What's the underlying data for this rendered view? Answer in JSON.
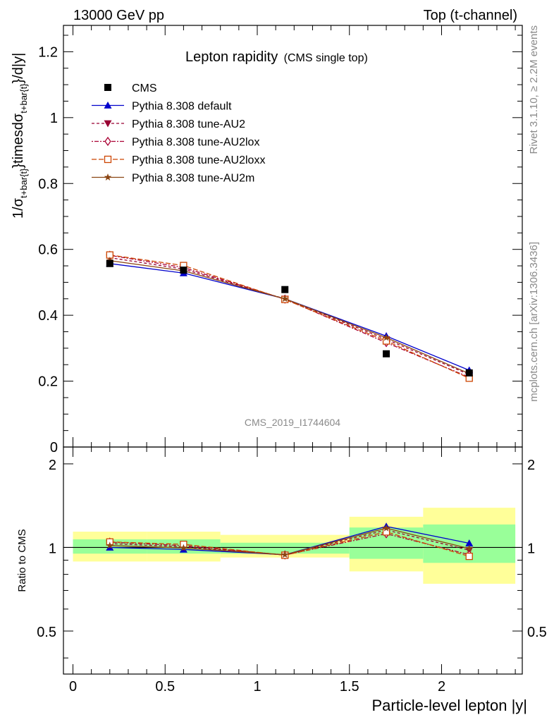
{
  "header": {
    "left": "13000 GeV pp",
    "right": "Top (t-channel)"
  },
  "side_labels": {
    "rivet": "Rivet 3.1.10, ≥ 2.2M events",
    "mcplots": "mcplots.cern.ch [arXiv:1306.3436]"
  },
  "chart_data": {
    "type": "line",
    "title": "Lepton rapidity",
    "subtitle": "(CMS single top)",
    "watermark": "CMS_2019_I1744604",
    "xlabel": "Particle-level lepton |y|",
    "ylabel": "1/σ_{t+bar{t}}timesdσ_{t+bar{t}}/d|y|",
    "ylabel_parts": {
      "base": "1/σ",
      "sub1": "t+bar{t}",
      "mid": "}timesdσ",
      "sub2": "t+bar{t}",
      "end": "}/d|y|"
    },
    "ratio_ylabel": "Ratio to CMS",
    "xlim": [
      -0.05,
      2.45
    ],
    "ylim": [
      0,
      1.28
    ],
    "ratio_ylim": [
      0.35,
      2.3
    ],
    "x_ticks": [
      0,
      0.5,
      1,
      1.5,
      2
    ],
    "x_tick_labels": [
      "0",
      "0.5",
      "1",
      "1.5",
      "2"
    ],
    "y_ticks": [
      0,
      0.2,
      0.4,
      0.6,
      0.8,
      1,
      1.2
    ],
    "y_tick_labels": [
      "0",
      "0.2",
      "0.4",
      "0.6",
      "0.8",
      "1",
      "1.2"
    ],
    "ratio_y_ticks": [
      0.5,
      1,
      2
    ],
    "ratio_y_tick_labels": [
      "0.5",
      "1",
      "2"
    ],
    "legend_position": "top-left",
    "x": [
      0.2,
      0.6,
      1.15,
      1.7,
      2.15
    ],
    "bins": [
      [
        0,
        0.4
      ],
      [
        0.4,
        0.8
      ],
      [
        0.8,
        1.5
      ],
      [
        1.5,
        1.9
      ],
      [
        1.9,
        2.4
      ]
    ],
    "cms": {
      "name": "CMS",
      "values": [
        0.557,
        0.537,
        0.478,
        0.283,
        0.225
      ],
      "band_inner": [
        [
          0.95,
          1.07
        ],
        [
          0.95,
          1.07
        ],
        [
          0.95,
          1.04
        ],
        [
          0.91,
          1.18
        ],
        [
          0.88,
          1.21
        ]
      ],
      "band_outer": [
        [
          0.89,
          1.14
        ],
        [
          0.89,
          1.14
        ],
        [
          0.92,
          1.11
        ],
        [
          0.82,
          1.29
        ],
        [
          0.74,
          1.39
        ]
      ]
    },
    "series": [
      {
        "name": "Pythia 8.308 default",
        "color": "#0000cc",
        "dash": "",
        "marker": "triangle-up",
        "values": [
          0.557,
          0.528,
          0.45,
          0.337,
          0.233
        ]
      },
      {
        "name": "Pythia 8.308 tune-AU2",
        "color": "#990033",
        "dash": "4,3",
        "marker": "triangle-down",
        "values": [
          0.575,
          0.54,
          0.45,
          0.327,
          0.22
        ]
      },
      {
        "name": "Pythia 8.308 tune-AU2lox",
        "color": "#aa0033",
        "dash": "2,2,6,2",
        "marker": "diamond",
        "values": [
          0.582,
          0.545,
          0.449,
          0.317,
          0.212
        ]
      },
      {
        "name": "Pythia 8.308 tune-AU2loxx",
        "color": "#cc4400",
        "dash": "7,3",
        "marker": "square-open",
        "values": [
          0.583,
          0.551,
          0.448,
          0.322,
          0.209
        ]
      },
      {
        "name": "Pythia 8.308 tune-AU2m",
        "color": "#8b4513",
        "dash": "",
        "marker": "star",
        "values": [
          0.566,
          0.535,
          0.45,
          0.332,
          0.223
        ]
      }
    ]
  }
}
